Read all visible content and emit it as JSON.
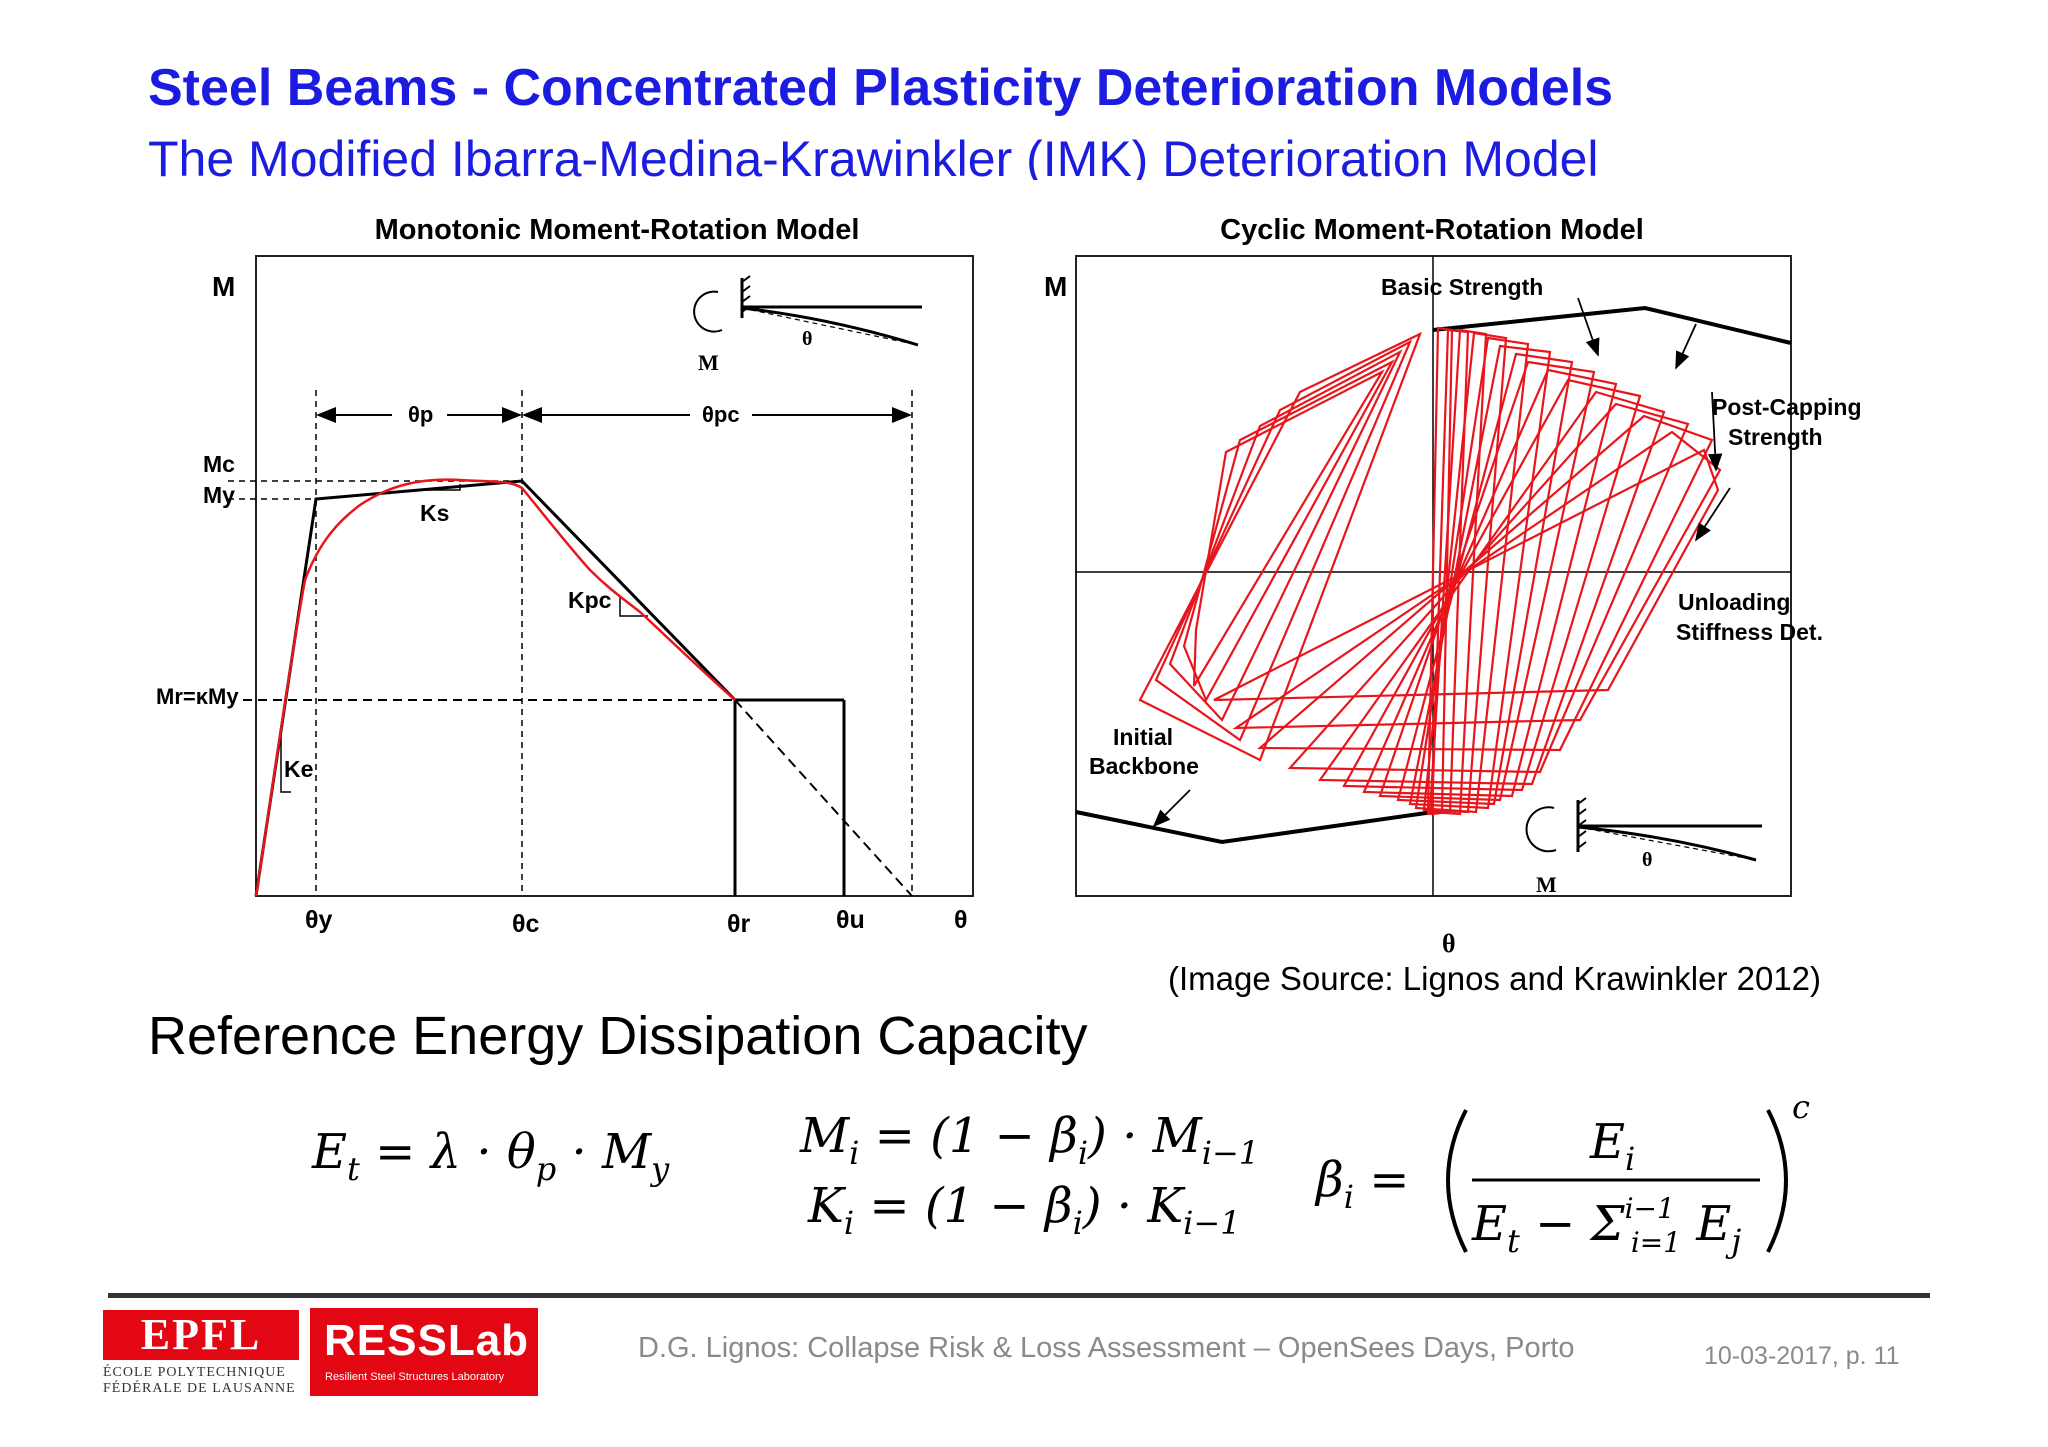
{
  "slide": {
    "title": "Steel Beams - Concentrated Plasticity Deterioration Models",
    "subtitle": "The Modified Ibarra-Medina-Krawinkler (IMK) Deterioration Model",
    "image_source": "(Image Source: Lignos and Krawinkler 2012)",
    "section_heading": "Reference Energy Dissipation Capacity"
  },
  "monotonic_figure": {
    "title": "Monotonic Moment-Rotation Model",
    "y_axis": "M",
    "x_axis": "θ",
    "labels": {
      "theta_p": "θp",
      "theta_pc": "θpc",
      "Mc": "Mc",
      "My": "My",
      "Mr": "Mr=κMy",
      "Ks": "Ks",
      "Kpc": "Kpc",
      "Ke": "Ke",
      "inset_M": "M",
      "inset_theta": "θ"
    },
    "x_ticks": [
      "θy",
      "θc",
      "θr",
      "θu",
      "θ"
    ]
  },
  "cyclic_figure": {
    "title": "Cyclic Moment-Rotation Model",
    "y_axis": "M",
    "x_axis": "θ",
    "annotations": {
      "basic_strength": "Basic Strength",
      "post_capping": [
        "Post-Capping",
        "Strength"
      ],
      "unloading": [
        "Unloading",
        "Stiffness Det."
      ],
      "initial_backbone": [
        "Initial",
        "Backbone"
      ],
      "inset_M": "M",
      "inset_theta": "θ"
    }
  },
  "equations": {
    "energy": "E_t = λ · θ_p · M_y",
    "moment": "M_i = (1 − β_i) · M_{i−1}",
    "stiffness": "K_i = (1 − β_i) · K_{i−1}",
    "beta": "β_i = ( E_i / (E_t − Σ_{j=1}^{i−1} E_j) )^c"
  },
  "footer": {
    "epfl_logo_text": "EPFL",
    "epfl_line1": "ÉCOLE POLYTECHNIQUE",
    "epfl_line2": "FÉDÉRALE DE LAUSANNE",
    "lab_name": "RESSLab",
    "lab_full": "Resilient Steel Structures Laboratory",
    "citation": "D.G. Lignos: Collapse Risk & Loss Assessment – OpenSees Days, Porto",
    "date_page": "10-03-2017, p. 11"
  },
  "colors": {
    "title_blue": "#1b1ce0",
    "curve_red": "#e8161c",
    "brand_red": "#e30613"
  }
}
